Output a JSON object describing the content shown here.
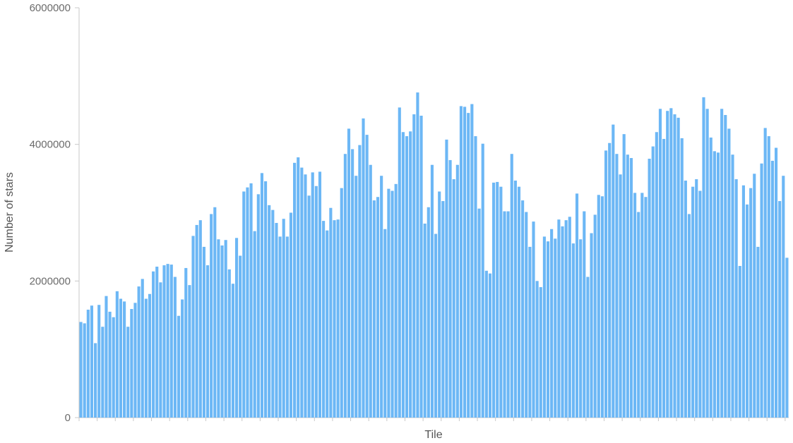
{
  "chart_data": {
    "type": "bar",
    "title": "",
    "xlabel": "Tile",
    "ylabel": "Number of stars",
    "ylim": [
      0,
      6000000
    ],
    "yticks": [
      "0",
      "2000000",
      "4000000",
      "6000000"
    ],
    "ytick_values": [
      0,
      2000000,
      4000000,
      6000000
    ],
    "grid": false,
    "bar_color": "#6cb7f5",
    "axis_color": "#c8c8c8",
    "values": [
      1400000,
      1380000,
      1580000,
      1640000,
      1090000,
      1650000,
      1330000,
      1780000,
      1550000,
      1470000,
      1850000,
      1740000,
      1700000,
      1330000,
      1590000,
      1680000,
      1920000,
      2030000,
      1740000,
      1810000,
      2140000,
      2210000,
      1980000,
      2230000,
      2250000,
      2240000,
      2060000,
      1490000,
      1730000,
      2190000,
      1940000,
      2660000,
      2820000,
      2890000,
      2500000,
      2230000,
      2980000,
      3080000,
      2610000,
      2520000,
      2600000,
      2170000,
      1960000,
      2630000,
      2370000,
      3310000,
      3370000,
      3430000,
      2730000,
      3270000,
      3580000,
      3460000,
      3110000,
      3040000,
      2850000,
      2650000,
      2910000,
      2650000,
      3000000,
      3730000,
      3810000,
      3660000,
      3560000,
      3250000,
      3590000,
      3390000,
      3600000,
      2880000,
      2740000,
      3070000,
      2890000,
      2900000,
      3360000,
      3860000,
      4230000,
      3930000,
      3540000,
      3990000,
      4380000,
      4140000,
      3700000,
      3180000,
      3230000,
      3540000,
      2760000,
      3350000,
      3320000,
      3420000,
      4540000,
      4180000,
      4120000,
      4190000,
      4440000,
      4760000,
      4420000,
      2840000,
      3080000,
      3700000,
      2690000,
      3310000,
      3170000,
      4070000,
      3770000,
      3490000,
      3700000,
      4560000,
      4550000,
      4460000,
      4590000,
      4120000,
      3060000,
      4010000,
      2150000,
      2110000,
      3440000,
      3450000,
      3380000,
      3020000,
      3020000,
      3860000,
      3470000,
      3380000,
      3180000,
      3010000,
      2500000,
      2870000,
      2000000,
      1910000,
      2650000,
      2580000,
      2760000,
      2620000,
      2900000,
      2800000,
      2890000,
      2940000,
      2550000,
      3280000,
      2610000,
      3020000,
      2060000,
      2700000,
      2970000,
      3260000,
      3240000,
      3910000,
      4020000,
      4290000,
      3860000,
      3560000,
      4150000,
      3850000,
      3800000,
      3290000,
      3010000,
      3290000,
      3230000,
      3790000,
      3970000,
      4180000,
      4520000,
      4080000,
      4490000,
      4530000,
      4440000,
      4390000,
      4090000,
      3470000,
      2980000,
      3380000,
      3490000,
      3320000,
      4690000,
      4520000,
      4100000,
      3900000,
      3880000,
      4520000,
      4430000,
      4230000,
      3850000,
      3490000,
      2220000,
      3400000,
      3120000,
      3360000,
      3570000,
      2500000,
      3720000,
      4240000,
      4120000,
      3760000,
      3950000,
      3170000,
      3540000,
      2340000
    ]
  }
}
